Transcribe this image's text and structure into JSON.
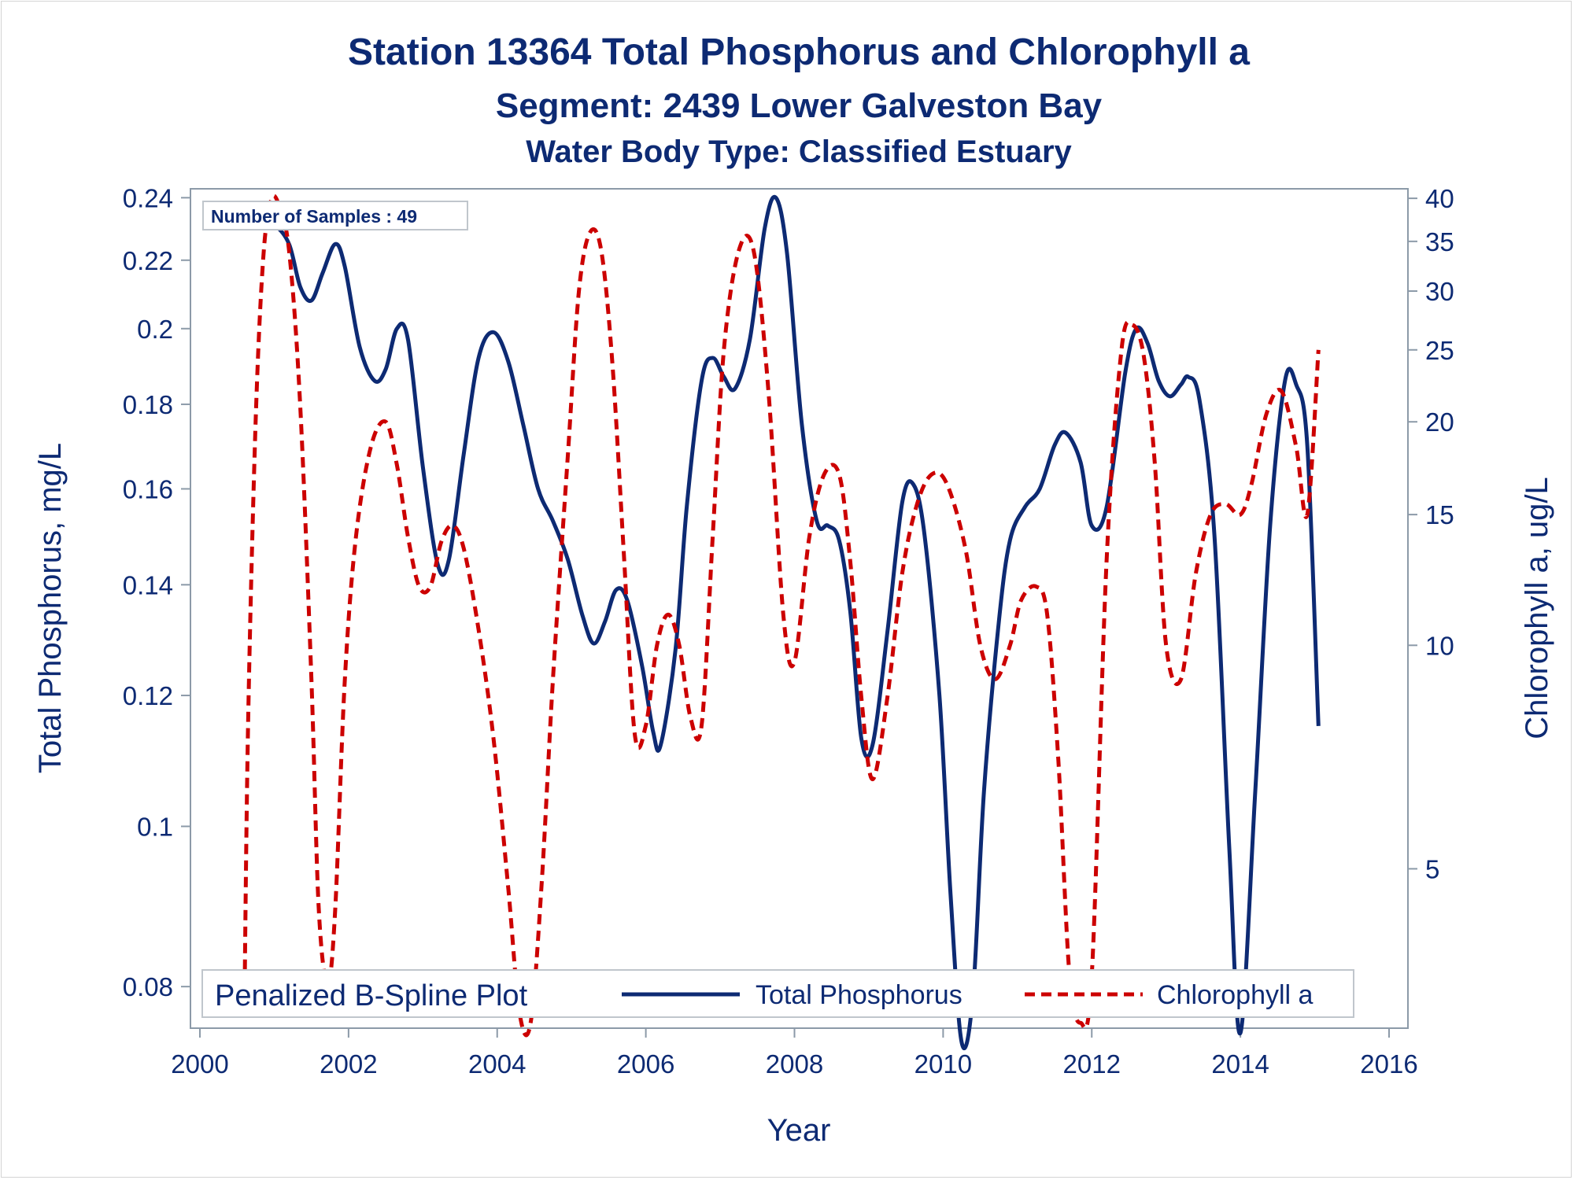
{
  "chart_data": {
    "type": "line",
    "title": "Station 13364  Total Phosphorus and Chlorophyll a",
    "subtitle": "Segment: 2439  Lower Galveston Bay",
    "subtitle2": "Water Body Type: Classified Estuary",
    "xlabel": "Year",
    "ylabel_left": "Total Phosphorus, mg/L",
    "ylabel_right": "Chlorophyll a, ug/L",
    "inset_label": "Number of Samples : 49",
    "legend": {
      "title": "Penalized B-Spline Plot",
      "entries": [
        {
          "name": "Total Phosphorus",
          "style": "solid",
          "color": "#0d2a73"
        },
        {
          "name": "Chlorophyll a",
          "style": "dashed",
          "color": "#cc0000"
        }
      ],
      "placement": "bottom-inside"
    },
    "x_ticks": [
      "2000",
      "2002",
      "2004",
      "2006",
      "2008",
      "2010",
      "2012",
      "2014",
      "2016"
    ],
    "xlim": [
      2000,
      2016
    ],
    "y_left_scale": "log",
    "y_left_ticks": [
      "0.08",
      "0.1",
      "0.12",
      "0.14",
      "0.16",
      "0.18",
      "0.2",
      "0.22",
      "0.24"
    ],
    "y_left_lim": [
      0.0755,
      0.243
    ],
    "y_right_scale": "log",
    "y_right_ticks": [
      "5",
      "10",
      "15",
      "20",
      "25",
      "30",
      "35",
      "40"
    ],
    "y_right_lim": [
      3.05,
      41.2
    ],
    "series": [
      {
        "name": "Total Phosphorus",
        "axis": "left",
        "color": "#0d2a73",
        "x": [
          2000.6,
          2000.8,
          2001.0,
          2001.2,
          2001.35,
          2001.5,
          2001.65,
          2001.82,
          2001.95,
          2002.15,
          2002.35,
          2002.5,
          2002.65,
          2002.8,
          2003.0,
          2003.2,
          2003.35,
          2003.55,
          2003.75,
          2003.95,
          2004.15,
          2004.35,
          2004.55,
          2004.75,
          2004.95,
          2005.15,
          2005.3,
          2005.45,
          2005.6,
          2005.75,
          2005.95,
          2006.1,
          2006.2,
          2006.4,
          2006.55,
          2006.75,
          2006.9,
          2007.05,
          2007.2,
          2007.4,
          2007.6,
          2007.75,
          2007.9,
          2008.1,
          2008.3,
          2008.45,
          2008.6,
          2008.75,
          2008.9,
          2009.05,
          2009.25,
          2009.45,
          2009.6,
          2009.75,
          2009.95,
          2010.1,
          2010.25,
          2010.4,
          2010.55,
          2010.75,
          2010.9,
          2011.1,
          2011.3,
          2011.5,
          2011.65,
          2011.85,
          2012.0,
          2012.2,
          2012.45,
          2012.6,
          2012.75,
          2012.9,
          2013.05,
          2013.2,
          2013.3,
          2013.45,
          2013.65,
          2013.85,
          2014.0,
          2014.2,
          2014.4,
          2014.6,
          2014.75,
          2014.9,
          2015.05
        ],
        "values": [
          0.235,
          0.231,
          0.231,
          0.225,
          0.212,
          0.208,
          0.216,
          0.225,
          0.218,
          0.195,
          0.186,
          0.189,
          0.2,
          0.197,
          0.165,
          0.144,
          0.145,
          0.168,
          0.192,
          0.199,
          0.191,
          0.175,
          0.16,
          0.153,
          0.145,
          0.134,
          0.129,
          0.133,
          0.139,
          0.137,
          0.125,
          0.114,
          0.112,
          0.128,
          0.156,
          0.186,
          0.192,
          0.187,
          0.184,
          0.197,
          0.23,
          0.24,
          0.222,
          0.175,
          0.153,
          0.152,
          0.149,
          0.135,
          0.113,
          0.112,
          0.131,
          0.157,
          0.161,
          0.15,
          0.12,
          0.091,
          0.074,
          0.079,
          0.105,
          0.133,
          0.149,
          0.156,
          0.16,
          0.17,
          0.173,
          0.166,
          0.152,
          0.156,
          0.188,
          0.2,
          0.196,
          0.186,
          0.182,
          0.185,
          0.187,
          0.181,
          0.15,
          0.097,
          0.075,
          0.105,
          0.152,
          0.186,
          0.185,
          0.17,
          0.115
        ]
      },
      {
        "name": "Chlorophyll a",
        "axis": "right",
        "color": "#cc0000",
        "x": [
          2000.6,
          2000.65,
          2000.75,
          2000.85,
          2000.95,
          2001.05,
          2001.2,
          2001.35,
          2001.5,
          2001.6,
          2001.72,
          2001.82,
          2001.95,
          2002.1,
          2002.3,
          2002.5,
          2002.65,
          2002.8,
          2002.95,
          2003.1,
          2003.25,
          2003.4,
          2003.55,
          2003.75,
          2003.95,
          2004.15,
          2004.3,
          2004.45,
          2004.6,
          2004.75,
          2004.95,
          2005.1,
          2005.25,
          2005.4,
          2005.55,
          2005.7,
          2005.85,
          2006.0,
          2006.15,
          2006.3,
          2006.45,
          2006.6,
          2006.75,
          2006.9,
          2007.05,
          2007.25,
          2007.45,
          2007.65,
          2007.85,
          2008.0,
          2008.2,
          2008.4,
          2008.6,
          2008.75,
          2008.9,
          2009.05,
          2009.25,
          2009.45,
          2009.65,
          2009.85,
          2010.05,
          2010.3,
          2010.5,
          2010.7,
          2010.9,
          2011.05,
          2011.25,
          2011.4,
          2011.55,
          2011.7,
          2011.85,
          2012.0,
          2012.2,
          2012.4,
          2012.55,
          2012.7,
          2012.85,
          2013.0,
          2013.2,
          2013.4,
          2013.6,
          2013.8,
          2014.0,
          2014.15,
          2014.35,
          2014.55,
          2014.75,
          2014.9,
          2015.05
        ],
        "values": [
          3.3,
          8.0,
          20.0,
          33.0,
          39.5,
          39.5,
          34.0,
          21.0,
          9.0,
          4.4,
          3.5,
          4.4,
          9.0,
          14.0,
          18.5,
          20.0,
          17.5,
          14.0,
          12.0,
          12.0,
          13.8,
          14.5,
          13.5,
          10.5,
          7.5,
          4.7,
          3.2,
          3.1,
          4.8,
          9.0,
          18.0,
          30.0,
          36.0,
          34.0,
          24.0,
          13.5,
          7.6,
          7.8,
          10.0,
          11.0,
          10.0,
          8.0,
          7.8,
          14.0,
          25.0,
          34.0,
          34.0,
          22.0,
          11.0,
          9.5,
          14.0,
          17.0,
          17.0,
          13.0,
          8.5,
          6.6,
          8.5,
          12.5,
          15.5,
          17.0,
          16.5,
          13.5,
          10.0,
          9.0,
          10.0,
          11.5,
          12.0,
          11.0,
          7.0,
          3.6,
          3.1,
          3.6,
          13.0,
          25.0,
          27.0,
          24.5,
          17.5,
          10.0,
          9.0,
          12.5,
          15.0,
          15.5,
          15.0,
          16.5,
          20.5,
          22.0,
          18.5,
          15.0,
          25.0
        ]
      }
    ],
    "grid": false
  }
}
